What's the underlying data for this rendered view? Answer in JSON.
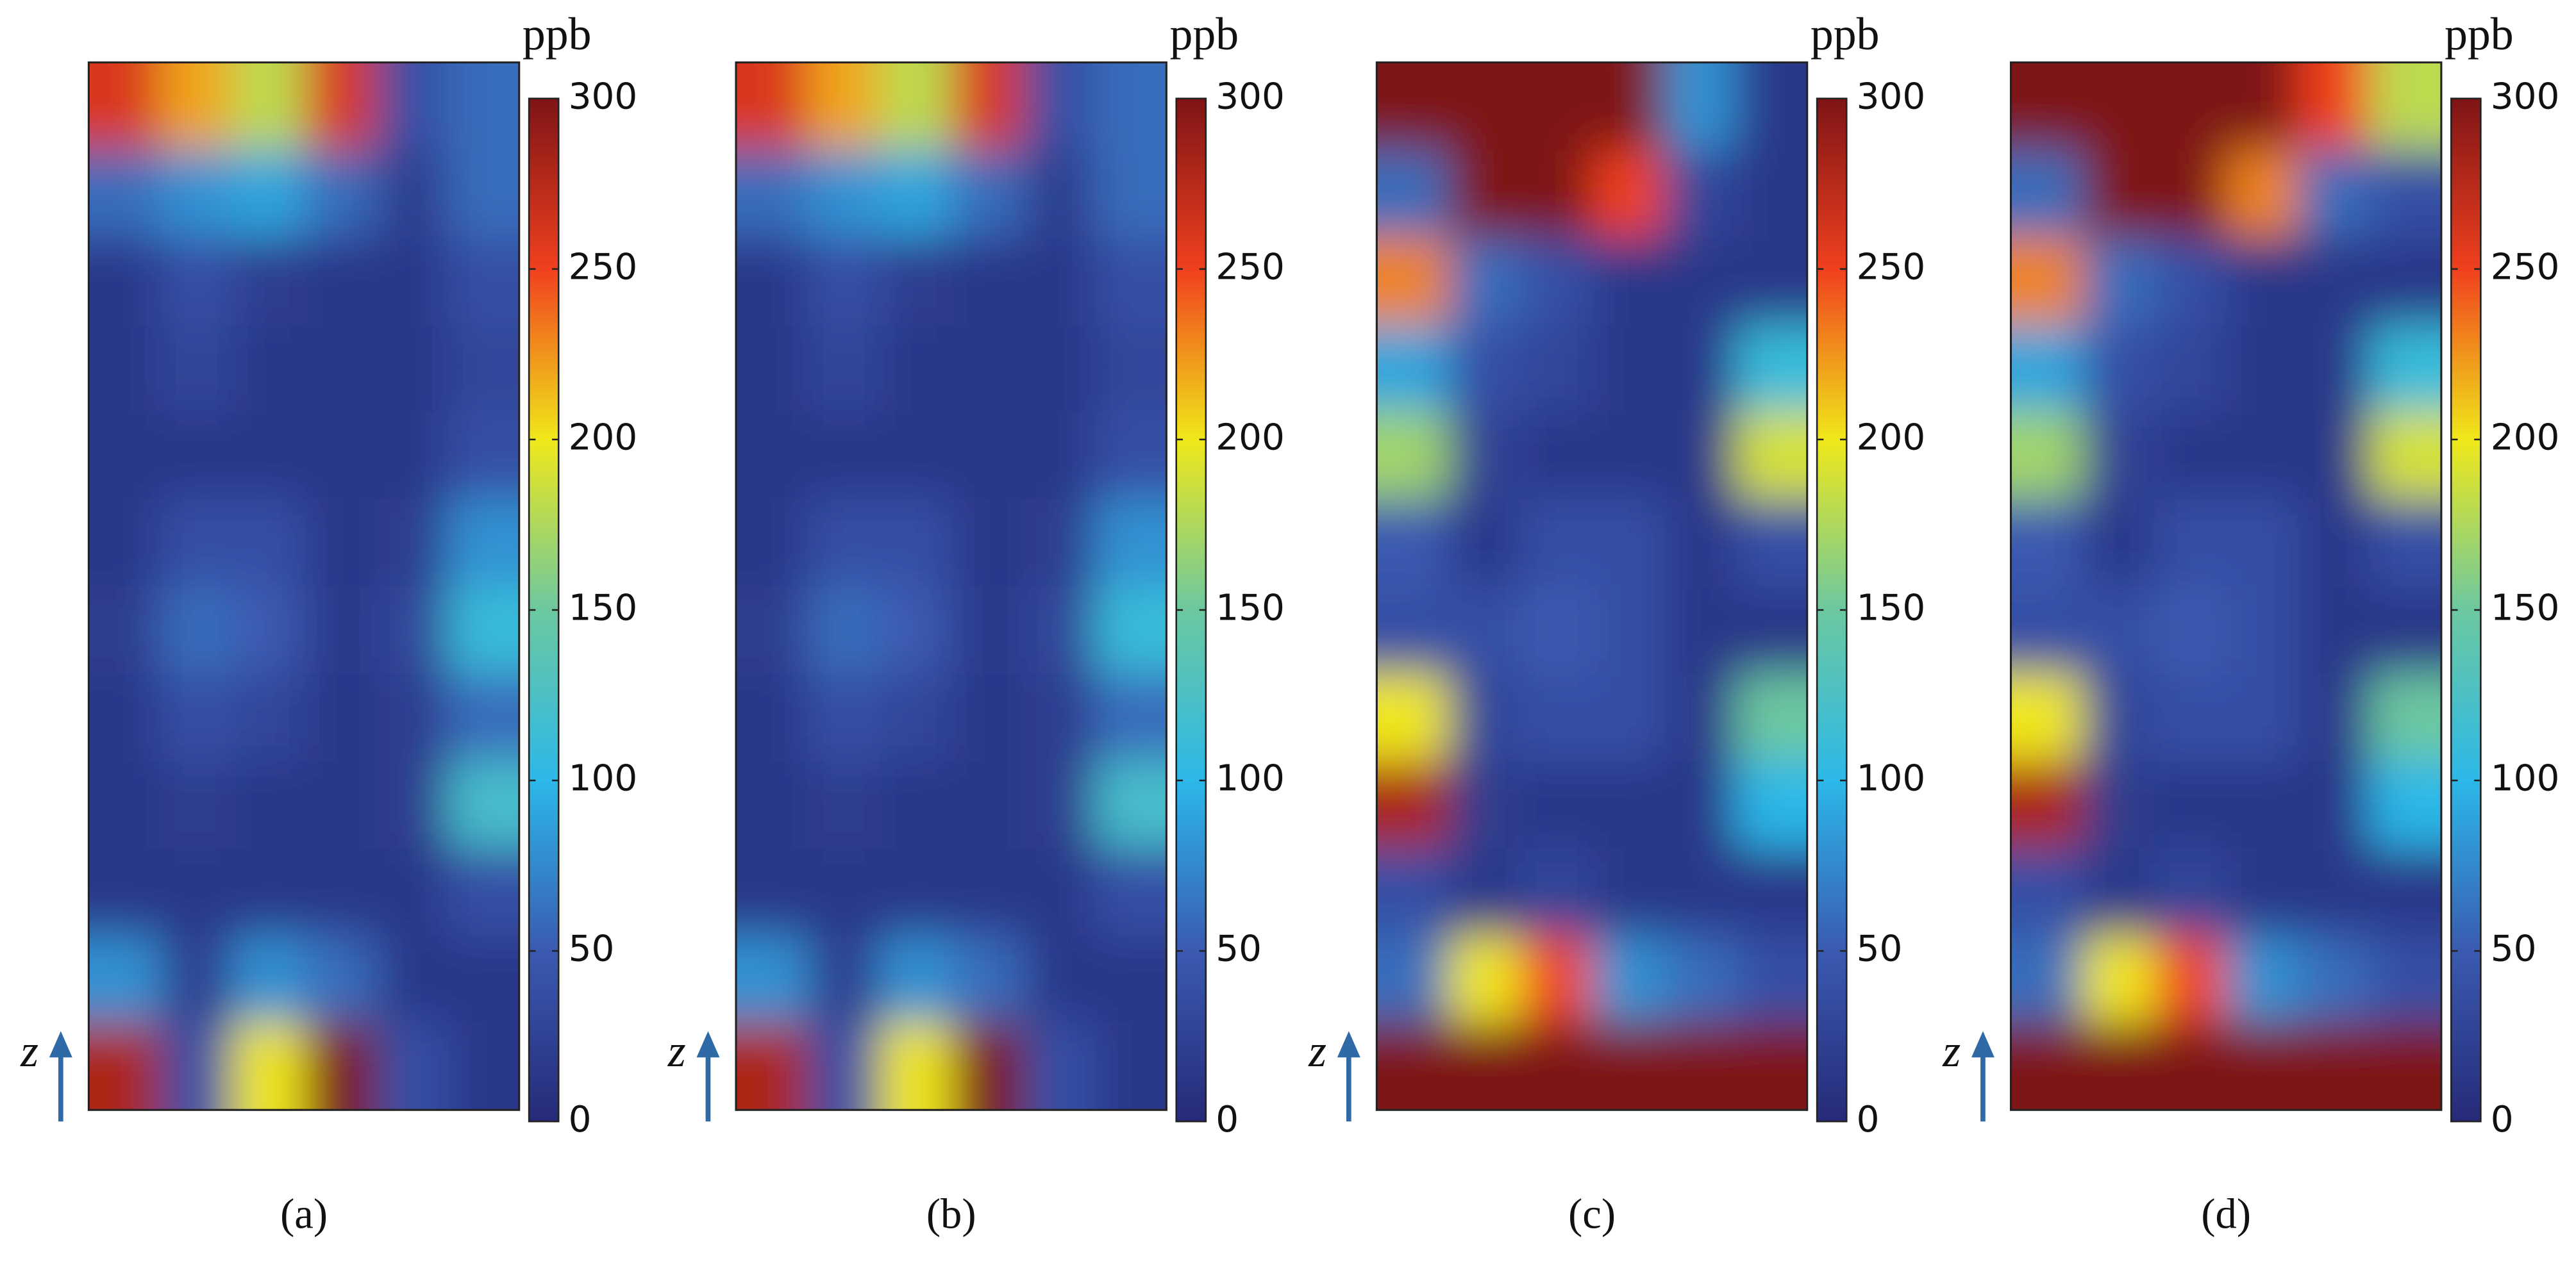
{
  "chart_data": [
    {
      "type": "heatmap",
      "title": "(a)",
      "colorbar_label": "ppb",
      "axis_label": "z",
      "clim": [
        0,
        300
      ],
      "cticks": [
        0,
        50,
        100,
        150,
        200,
        250,
        300
      ],
      "colormap": [
        "#262a78",
        "#3a5ab0",
        "#2cb8e8",
        "#6cc8a0",
        "#f0e81a",
        "#f0401e",
        "#7e1416"
      ],
      "values": [
        [
          260,
          220,
          180,
          260,
          40,
          60
        ],
        [
          60,
          80,
          90,
          60,
          20,
          60
        ],
        [
          15,
          40,
          20,
          15,
          15,
          40
        ],
        [
          15,
          30,
          15,
          15,
          15,
          30
        ],
        [
          15,
          15,
          15,
          15,
          15,
          40
        ],
        [
          15,
          40,
          40,
          15,
          20,
          80
        ],
        [
          20,
          60,
          50,
          15,
          30,
          110
        ],
        [
          15,
          40,
          30,
          15,
          20,
          60
        ],
        [
          15,
          20,
          15,
          15,
          20,
          120
        ],
        [
          15,
          15,
          15,
          15,
          15,
          40
        ],
        [
          80,
          20,
          80,
          60,
          15,
          15
        ],
        [
          280,
          40,
          200,
          300,
          40,
          15
        ]
      ]
    },
    {
      "type": "heatmap",
      "title": "(b)",
      "colorbar_label": "ppb",
      "axis_label": "z",
      "clim": [
        0,
        300
      ],
      "cticks": [
        0,
        50,
        100,
        150,
        200,
        250,
        300
      ],
      "colormap": [
        "#262a78",
        "#3a5ab0",
        "#2cb8e8",
        "#6cc8a0",
        "#f0e81a",
        "#f0401e",
        "#7e1416"
      ],
      "values": [
        [
          260,
          220,
          180,
          260,
          40,
          60
        ],
        [
          60,
          80,
          90,
          60,
          20,
          60
        ],
        [
          15,
          40,
          20,
          15,
          15,
          40
        ],
        [
          15,
          30,
          15,
          15,
          15,
          30
        ],
        [
          15,
          15,
          15,
          15,
          15,
          40
        ],
        [
          15,
          40,
          40,
          15,
          20,
          80
        ],
        [
          20,
          60,
          50,
          15,
          30,
          110
        ],
        [
          15,
          40,
          30,
          15,
          20,
          60
        ],
        [
          15,
          20,
          15,
          15,
          20,
          120
        ],
        [
          15,
          15,
          15,
          15,
          15,
          40
        ],
        [
          80,
          20,
          80,
          60,
          15,
          15
        ],
        [
          280,
          40,
          200,
          300,
          40,
          15
        ]
      ]
    },
    {
      "type": "heatmap",
      "title": "(c)",
      "colorbar_label": "ppb",
      "axis_label": "z",
      "clim": [
        0,
        300
      ],
      "cticks": [
        0,
        50,
        100,
        150,
        200,
        250,
        300
      ],
      "colormap": [
        "#262a78",
        "#3a5ab0",
        "#2cb8e8",
        "#6cc8a0",
        "#f0e81a",
        "#f0401e",
        "#7e1416"
      ],
      "values": [
        [
          300,
          300,
          300,
          300,
          80,
          15
        ],
        [
          60,
          300,
          300,
          250,
          30,
          15
        ],
        [
          230,
          60,
          40,
          15,
          15,
          15
        ],
        [
          90,
          40,
          30,
          15,
          15,
          110
        ],
        [
          170,
          25,
          15,
          15,
          15,
          190
        ],
        [
          50,
          15,
          40,
          40,
          15,
          40
        ],
        [
          40,
          40,
          50,
          40,
          15,
          15
        ],
        [
          200,
          30,
          40,
          40,
          15,
          150
        ],
        [
          280,
          20,
          15,
          15,
          15,
          100
        ],
        [
          40,
          15,
          30,
          15,
          15,
          15
        ],
        [
          60,
          200,
          250,
          80,
          60,
          40
        ],
        [
          300,
          300,
          300,
          300,
          300,
          300
        ]
      ]
    },
    {
      "type": "heatmap",
      "title": "(d)",
      "colorbar_label": "ppb",
      "axis_label": "z",
      "clim": [
        0,
        300
      ],
      "cticks": [
        0,
        50,
        100,
        150,
        200,
        250,
        300
      ],
      "colormap": [
        "#262a78",
        "#3a5ab0",
        "#2cb8e8",
        "#6cc8a0",
        "#f0e81a",
        "#f0401e",
        "#7e1416"
      ],
      "values": [
        [
          300,
          300,
          300,
          300,
          250,
          180
        ],
        [
          60,
          300,
          300,
          230,
          60,
          40
        ],
        [
          230,
          60,
          40,
          15,
          15,
          15
        ],
        [
          90,
          40,
          30,
          15,
          15,
          110
        ],
        [
          170,
          25,
          15,
          15,
          15,
          190
        ],
        [
          50,
          15,
          40,
          40,
          15,
          40
        ],
        [
          40,
          40,
          50,
          40,
          15,
          15
        ],
        [
          200,
          30,
          40,
          40,
          15,
          150
        ],
        [
          280,
          20,
          15,
          15,
          15,
          100
        ],
        [
          40,
          15,
          30,
          15,
          15,
          15
        ],
        [
          60,
          200,
          250,
          80,
          60,
          40
        ],
        [
          300,
          300,
          300,
          300,
          300,
          300
        ]
      ]
    }
  ]
}
